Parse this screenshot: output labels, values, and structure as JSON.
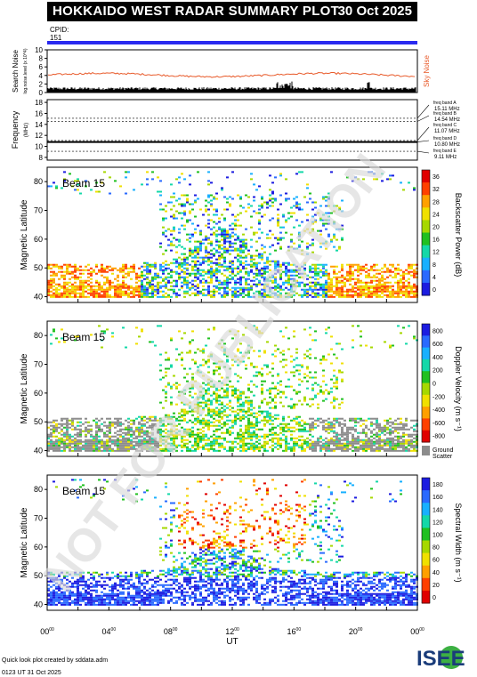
{
  "header": {
    "title": "HOKKAIDO WEST RADAR SUMMARY PLOT",
    "date": "30 Oct 2025"
  },
  "cpid": {
    "label": "CPID:",
    "value": "151"
  },
  "noise_panel": {
    "ylabel": "Search Noise",
    "ylabel_small": "log.noise.level (x 10^4)",
    "right_label": "Sky Noise",
    "yticks": [
      "0",
      "2",
      "4",
      "6",
      "8",
      "10"
    ]
  },
  "freq_panel": {
    "ylabel": "Frequency",
    "ylabel_unit": "(MHz)",
    "yticks": [
      "8",
      "10",
      "12",
      "14",
      "16",
      "18"
    ],
    "bands": [
      {
        "name": "freq band A",
        "mhz": "15.11 MHz"
      },
      {
        "name": "freq band B",
        "mhz": "14.54 MHz"
      },
      {
        "name": "freq band C",
        "mhz": "11.07 MHz"
      },
      {
        "name": "freq band D",
        "mhz": "10.80 MHz"
      },
      {
        "name": "freq band E",
        "mhz": "9.11 MHz"
      }
    ]
  },
  "watermark": "NOT FOR PUBLICATION",
  "footer": {
    "credit": "Quick look plot created by sddata.adm",
    "timestamp": "0123 UT 31 Oct 2025",
    "logo": "ISEE"
  },
  "colors": {
    "power": [
      "#1c1ce0",
      "#2a6aff",
      "#18b0ff",
      "#14d8a8",
      "#20c020",
      "#a6d800",
      "#f0e000",
      "#ffa000",
      "#ff4000",
      "#e00000"
    ],
    "velocity": [
      "#1c1ce0",
      "#2a6aff",
      "#18b0ff",
      "#14d8a8",
      "#20c020",
      "#a6d800",
      "#f0e000",
      "#ffa000",
      "#ff4000",
      "#e00000"
    ],
    "width": [
      "#1c1ce0",
      "#2a6aff",
      "#18b0ff",
      "#14d8a8",
      "#20c020",
      "#a6d800",
      "#f0e000",
      "#ffa000",
      "#ff4000",
      "#e00000"
    ],
    "ground": "#8c8c8c",
    "cpid_bar": "#2a2af0"
  },
  "chart_data": [
    {
      "type": "heatmap",
      "panel": "power",
      "beam": "Beam 15",
      "ylabel": "Magnetic Latitude",
      "yticks": [
        "40",
        "50",
        "60",
        "70",
        "80"
      ],
      "ylim": [
        38,
        85
      ],
      "colorbar_label": "Backscatter Power (dB)",
      "colorbar_ticks": [
        "0",
        "4",
        "8",
        "12",
        "16",
        "20",
        "24",
        "28",
        "32",
        "36"
      ]
    },
    {
      "type": "heatmap",
      "panel": "velocity",
      "beam": "Beam 15",
      "ylabel": "Magnetic Latitude",
      "yticks": [
        "40",
        "50",
        "60",
        "70",
        "80"
      ],
      "ylim": [
        38,
        85
      ],
      "colorbar_label": "Doppler Velocity (m s⁻¹)",
      "colorbar_ticks": [
        "800",
        "600",
        "400",
        "200",
        "0",
        "-200",
        "-400",
        "-600",
        "-800"
      ],
      "ground_label": "Ground",
      "ground_label2": "Scatter"
    },
    {
      "type": "heatmap",
      "panel": "width",
      "beam": "Beam 15",
      "ylabel": "Magnetic Latitude",
      "yticks": [
        "40",
        "50",
        "60",
        "70",
        "80"
      ],
      "ylim": [
        38,
        85
      ],
      "colorbar_label": "Spectral Width (m s⁻¹)",
      "colorbar_ticks": [
        "180",
        "160",
        "140",
        "120",
        "100",
        "80",
        "60",
        "40",
        "20",
        "0"
      ]
    }
  ],
  "xaxis": {
    "label": "UT",
    "ticks": [
      "00",
      "04",
      "08",
      "12",
      "16",
      "20",
      "00"
    ],
    "tick_sup": "00"
  }
}
